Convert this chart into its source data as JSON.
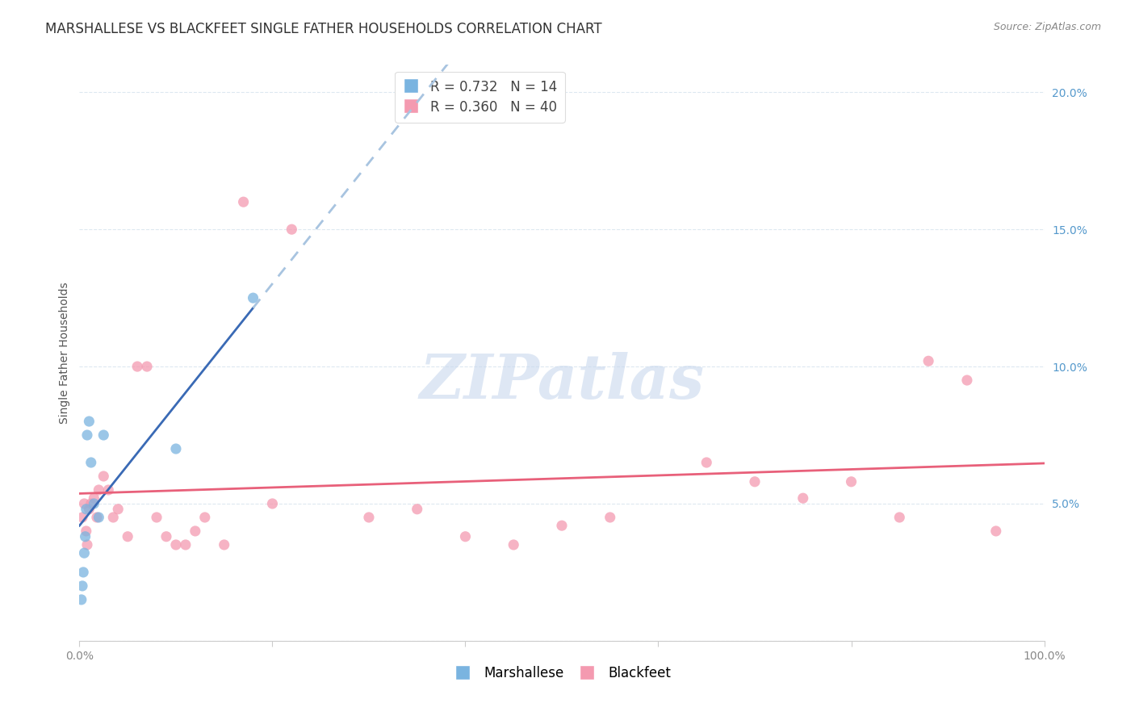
{
  "title": "MARSHALLESE VS BLACKFEET SINGLE FATHER HOUSEHOLDS CORRELATION CHART",
  "source": "Source: ZipAtlas.com",
  "ylabel": "Single Father Households",
  "marshallese_R": 0.732,
  "marshallese_N": 14,
  "blackfeet_R": 0.36,
  "blackfeet_N": 40,
  "marshallese_color": "#7ab4e0",
  "blackfeet_color": "#f49ab0",
  "marshallese_line_color": "#3a6ab5",
  "blackfeet_line_color": "#e8607a",
  "dashed_line_color": "#a8c4e0",
  "bg_color": "#ffffff",
  "grid_color": "#dde8f0",
  "xlim": [
    0,
    100
  ],
  "ylim": [
    0,
    21
  ],
  "marshallese_x": [
    0.2,
    0.3,
    0.4,
    0.5,
    0.6,
    0.7,
    0.8,
    1.0,
    1.2,
    1.5,
    2.0,
    2.5,
    10.0,
    18.0
  ],
  "marshallese_y": [
    1.5,
    2.0,
    2.5,
    3.2,
    3.8,
    4.8,
    7.5,
    8.0,
    6.5,
    5.0,
    4.5,
    7.5,
    7.0,
    12.5
  ],
  "blackfeet_x": [
    0.3,
    0.5,
    0.7,
    0.8,
    1.0,
    1.2,
    1.5,
    1.8,
    2.0,
    2.5,
    3.0,
    3.5,
    4.0,
    5.0,
    6.0,
    7.0,
    8.0,
    9.0,
    10.0,
    11.0,
    12.0,
    13.0,
    15.0,
    17.0,
    20.0,
    22.0,
    30.0,
    35.0,
    40.0,
    45.0,
    50.0,
    55.0,
    65.0,
    70.0,
    75.0,
    80.0,
    85.0,
    88.0,
    92.0,
    95.0
  ],
  "blackfeet_y": [
    4.5,
    5.0,
    4.0,
    3.5,
    4.8,
    5.0,
    5.2,
    4.5,
    5.5,
    6.0,
    5.5,
    4.5,
    4.8,
    3.8,
    10.0,
    10.0,
    4.5,
    3.8,
    3.5,
    3.5,
    4.0,
    4.5,
    3.5,
    16.0,
    5.0,
    15.0,
    4.5,
    4.8,
    3.8,
    3.5,
    4.2,
    4.5,
    6.5,
    5.8,
    5.2,
    5.8,
    4.5,
    10.2,
    9.5,
    4.0
  ],
  "watermark_text": "ZIPatlas",
  "marker_size": 90,
  "title_fontsize": 12,
  "axis_label_fontsize": 10,
  "tick_fontsize": 10,
  "legend_fontsize": 12,
  "source_fontsize": 9
}
